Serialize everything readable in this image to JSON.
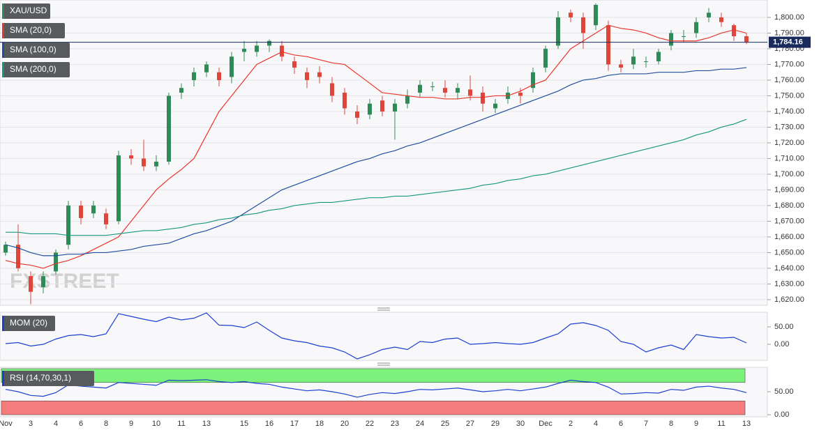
{
  "chart_data": [
    {
      "type": "candlestick",
      "symbol": "XAU/USD",
      "watermark": "FXSTREET",
      "up_color": "#2e8b57",
      "down_color": "#e0453a",
      "categories": [
        "Nov",
        null,
        "3",
        null,
        "4",
        null,
        "6",
        null,
        "8",
        null,
        "9",
        null,
        "10",
        null,
        "11",
        null,
        "13",
        null,
        null,
        "15",
        null,
        "16",
        null,
        "17",
        null,
        "18",
        null,
        "20",
        null,
        "22",
        null,
        "23",
        null,
        "24",
        null,
        "25",
        null,
        "27",
        null,
        "29",
        null,
        "30",
        null,
        "Dec",
        null,
        "2",
        null,
        "4",
        null,
        "6",
        null,
        "7",
        null,
        "8",
        null,
        "9",
        null,
        "11",
        null,
        "13"
      ],
      "open": [
        1650,
        1655,
        1635,
        1628,
        1638,
        1655,
        1680,
        1675,
        1675,
        1670,
        1712,
        1710,
        1705,
        1708,
        1752,
        1760,
        1765,
        1765,
        1762,
        1778,
        1778,
        1782,
        1782,
        1772,
        1765,
        1765,
        1758,
        1752,
        1740,
        1738,
        1747,
        1740,
        1745,
        1752,
        1756,
        1755,
        1752,
        1754,
        1752,
        1742,
        1748,
        1752,
        1755,
        1768,
        1782,
        1803,
        1800,
        1795,
        1795,
        1770,
        1770,
        1772,
        1772,
        1782,
        1788,
        1790,
        1800,
        1800,
        1795,
        1788
      ],
      "high": [
        1657,
        1668,
        1638,
        1638,
        1652,
        1683,
        1683,
        1683,
        1678,
        1715,
        1716,
        1722,
        1712,
        1752,
        1758,
        1768,
        1772,
        1768,
        1778,
        1785,
        1785,
        1786,
        1785,
        1775,
        1768,
        1769,
        1762,
        1755,
        1744,
        1748,
        1750,
        1748,
        1754,
        1760,
        1759,
        1760,
        1758,
        1763,
        1756,
        1748,
        1756,
        1755,
        1768,
        1782,
        1804,
        1805,
        1803,
        1809,
        1798,
        1773,
        1780,
        1775,
        1780,
        1792,
        1792,
        1800,
        1806,
        1803,
        1796,
        1790
      ],
      "low": [
        1648,
        1638,
        1617,
        1624,
        1636,
        1652,
        1668,
        1672,
        1665,
        1668,
        1706,
        1702,
        1702,
        1706,
        1748,
        1756,
        1762,
        1756,
        1758,
        1772,
        1775,
        1778,
        1772,
        1764,
        1755,
        1758,
        1746,
        1738,
        1732,
        1735,
        1737,
        1722,
        1742,
        1749,
        1753,
        1749,
        1748,
        1747,
        1740,
        1739,
        1745,
        1745,
        1752,
        1765,
        1780,
        1797,
        1780,
        1792,
        1766,
        1765,
        1767,
        1768,
        1770,
        1779,
        1784,
        1787,
        1797,
        1794,
        1785,
        1783
      ],
      "close": [
        1655,
        1640,
        1625,
        1635,
        1650,
        1680,
        1672,
        1680,
        1668,
        1712,
        1710,
        1705,
        1708,
        1750,
        1755,
        1765,
        1770,
        1760,
        1775,
        1780,
        1782,
        1785,
        1775,
        1768,
        1760,
        1762,
        1750,
        1742,
        1736,
        1745,
        1740,
        1745,
        1750,
        1757,
        1756,
        1752,
        1755,
        1750,
        1745,
        1745,
        1752,
        1750,
        1765,
        1780,
        1800,
        1800,
        1790,
        1808,
        1770,
        1768,
        1775,
        1772,
        1778,
        1790,
        1788,
        1797,
        1803,
        1797,
        1788,
        1784
      ],
      "series": [
        {
          "name": "SMA (20,0)",
          "color": "#e8352b",
          "values": [
            1645,
            1643,
            1642,
            1640,
            1643,
            1645,
            1648,
            1652,
            1656,
            1660,
            1670,
            1680,
            1690,
            1697,
            1703,
            1710,
            1725,
            1740,
            1750,
            1760,
            1770,
            1774,
            1778,
            1776,
            1775,
            1773,
            1771,
            1770,
            1764,
            1758,
            1752,
            1751,
            1750,
            1749,
            1749,
            1748,
            1748,
            1749,
            1749,
            1750,
            1750,
            1753,
            1757,
            1760,
            1770,
            1780,
            1785,
            1790,
            1795,
            1793,
            1792,
            1790,
            1787,
            1785,
            1785,
            1785,
            1787,
            1790,
            1792,
            1790
          ]
        },
        {
          "name": "SMA (100,0)",
          "color": "#1f4e9c",
          "values": [
            1655,
            1653,
            1650,
            1648,
            1648,
            1649,
            1649,
            1650,
            1650,
            1651,
            1652,
            1654,
            1655,
            1656,
            1659,
            1662,
            1664,
            1667,
            1670,
            1675,
            1680,
            1685,
            1690,
            1693,
            1696,
            1699,
            1702,
            1705,
            1708,
            1710,
            1713,
            1715,
            1718,
            1720,
            1723,
            1726,
            1729,
            1732,
            1735,
            1738,
            1741,
            1744,
            1747,
            1750,
            1753,
            1757,
            1760,
            1761,
            1763,
            1764,
            1764,
            1764,
            1765,
            1765,
            1765,
            1766,
            1766,
            1767,
            1767,
            1768
          ]
        },
        {
          "name": "SMA (200,0)",
          "color": "#17967f",
          "values": [
            1663,
            1663,
            1662,
            1662,
            1662,
            1661,
            1661,
            1661,
            1661,
            1662,
            1663,
            1664,
            1664,
            1665,
            1666,
            1668,
            1669,
            1671,
            1672,
            1674,
            1675,
            1677,
            1678,
            1680,
            1681,
            1682,
            1682,
            1683,
            1684,
            1685,
            1685,
            1686,
            1686,
            1687,
            1688,
            1689,
            1690,
            1691,
            1693,
            1694,
            1696,
            1697,
            1699,
            1700,
            1702,
            1704,
            1706,
            1708,
            1710,
            1712,
            1714,
            1716,
            1718,
            1720,
            1722,
            1725,
            1727,
            1730,
            1732,
            1735
          ]
        }
      ],
      "last_price": {
        "value": 1784.16,
        "label": "1,784.16"
      },
      "ylim": [
        1616.4,
        1811.1
      ],
      "yticks": [
        {
          "value": 1620,
          "label": "1,620.00"
        },
        {
          "value": 1630,
          "label": "1,630.00"
        },
        {
          "value": 1640,
          "label": "1,640.00"
        },
        {
          "value": 1650,
          "label": "1,650.00"
        },
        {
          "value": 1660,
          "label": "1,660.00"
        },
        {
          "value": 1670,
          "label": "1,670.00"
        },
        {
          "value": 1680,
          "label": "1,680.00"
        },
        {
          "value": 1690,
          "label": "1,690.00"
        },
        {
          "value": 1700,
          "label": "1,700.00"
        },
        {
          "value": 1710,
          "label": "1,710.00"
        },
        {
          "value": 1720,
          "label": "1,720.00"
        },
        {
          "value": 1730,
          "label": "1,730.00"
        },
        {
          "value": 1740,
          "label": "1,740.00"
        },
        {
          "value": 1750,
          "label": "1,750.00"
        },
        {
          "value": 1760,
          "label": "1,760.00"
        },
        {
          "value": 1770,
          "label": "1,770.00"
        },
        {
          "value": 1780,
          "label": "1,780.00"
        },
        {
          "value": 1790,
          "label": "1,790.00"
        },
        {
          "value": 1800,
          "label": "1,800.00"
        }
      ],
      "grid": true
    },
    {
      "type": "line",
      "series": [
        {
          "name": "MOM (20)",
          "color": "#1b3fcf",
          "values": [
            2,
            5,
            -5,
            0,
            15,
            25,
            28,
            22,
            30,
            88,
            80,
            72,
            65,
            78,
            70,
            75,
            90,
            55,
            54,
            48,
            64,
            40,
            18,
            10,
            5,
            -5,
            -10,
            -22,
            -42,
            -30,
            -15,
            -8,
            -15,
            8,
            5,
            15,
            18,
            0,
            2,
            5,
            2,
            0,
            5,
            18,
            30,
            58,
            62,
            54,
            40,
            8,
            0,
            -22,
            -10,
            -2,
            -15,
            28,
            22,
            18,
            20,
            4
          ]
        }
      ],
      "ylim": [
        -46,
        92
      ],
      "yticks": [
        {
          "value": 0,
          "label": "0.00"
        },
        {
          "value": 50,
          "label": "50.00"
        }
      ]
    },
    {
      "type": "line",
      "series": [
        {
          "name": "RSI (14,70,30,1)",
          "color": "#1b3fcf",
          "values": [
            55,
            50,
            42,
            40,
            48,
            65,
            62,
            60,
            58,
            70,
            68,
            66,
            64,
            75,
            74,
            75,
            76,
            72,
            70,
            72,
            68,
            66,
            60,
            56,
            52,
            54,
            50,
            45,
            38,
            44,
            48,
            46,
            50,
            55,
            54,
            56,
            58,
            54,
            50,
            52,
            55,
            52,
            56,
            60,
            68,
            75,
            72,
            70,
            60,
            45,
            46,
            48,
            47,
            55,
            53,
            60,
            62,
            58,
            55,
            48
          ]
        }
      ],
      "bands": [
        {
          "from": 70,
          "to": 100,
          "color": "#7cf27c"
        },
        {
          "from": 0,
          "to": 30,
          "color": "#f47c7c"
        }
      ],
      "ylim": [
        -4.5,
        103
      ],
      "yticks": [
        {
          "value": 0,
          "label": "0.00"
        },
        {
          "value": 50,
          "label": "50.00"
        }
      ]
    }
  ]
}
